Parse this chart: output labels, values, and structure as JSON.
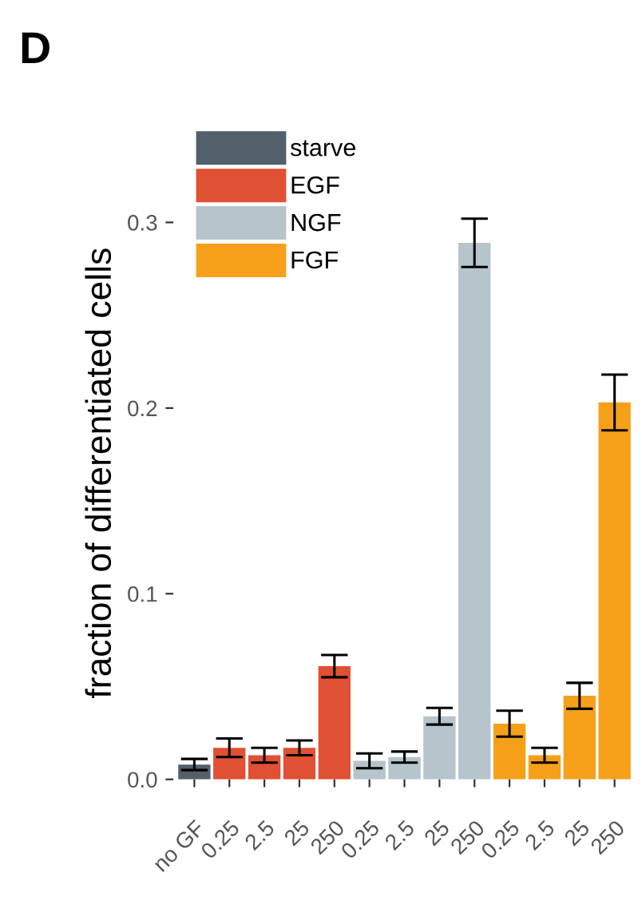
{
  "chart_data": {
    "type": "bar",
    "ylabel": "fraction of differentiated cells",
    "annotations": [
      "D"
    ],
    "categories": [
      "no GF",
      "0.25",
      "2.5",
      "25",
      "250",
      "0.25",
      "2.5",
      "25",
      "250",
      "0.25",
      "2.5",
      "25",
      "250"
    ],
    "series": [
      {
        "name": "starve",
        "color": "#535f69",
        "values": [
          0.008,
          null,
          null,
          null,
          null,
          null,
          null,
          null,
          null,
          null,
          null,
          null,
          null
        ],
        "errors": [
          0.003,
          null,
          null,
          null,
          null,
          null,
          null,
          null,
          null,
          null,
          null,
          null,
          null
        ]
      },
      {
        "name": "EGF",
        "color": "#e05033",
        "values": [
          null,
          0.017,
          0.013,
          0.017,
          0.061,
          null,
          null,
          null,
          null,
          null,
          null,
          null,
          null
        ],
        "errors": [
          null,
          0.005,
          0.004,
          0.004,
          0.006,
          null,
          null,
          null,
          null,
          null,
          null,
          null,
          null
        ]
      },
      {
        "name": "NGF",
        "color": "#b6c4cb",
        "values": [
          null,
          null,
          null,
          null,
          null,
          0.01,
          0.012,
          0.034,
          0.289,
          null,
          null,
          null,
          null
        ],
        "errors": [
          null,
          null,
          null,
          null,
          null,
          0.004,
          0.003,
          0.0045,
          0.013,
          null,
          null,
          null,
          null
        ]
      },
      {
        "name": "FGF",
        "color": "#f6a01a",
        "values": [
          null,
          null,
          null,
          null,
          null,
          null,
          null,
          null,
          null,
          0.03,
          0.013,
          0.045,
          0.203
        ],
        "errors": [
          null,
          null,
          null,
          null,
          null,
          null,
          null,
          null,
          null,
          0.007,
          0.004,
          0.007,
          0.015
        ]
      }
    ],
    "ylim": [
      0,
      0.33
    ],
    "yticks": [
      {
        "value": 0,
        "label": "0.0"
      },
      0.1,
      0.2,
      0.3
    ],
    "grid": false,
    "legend": "top left"
  }
}
